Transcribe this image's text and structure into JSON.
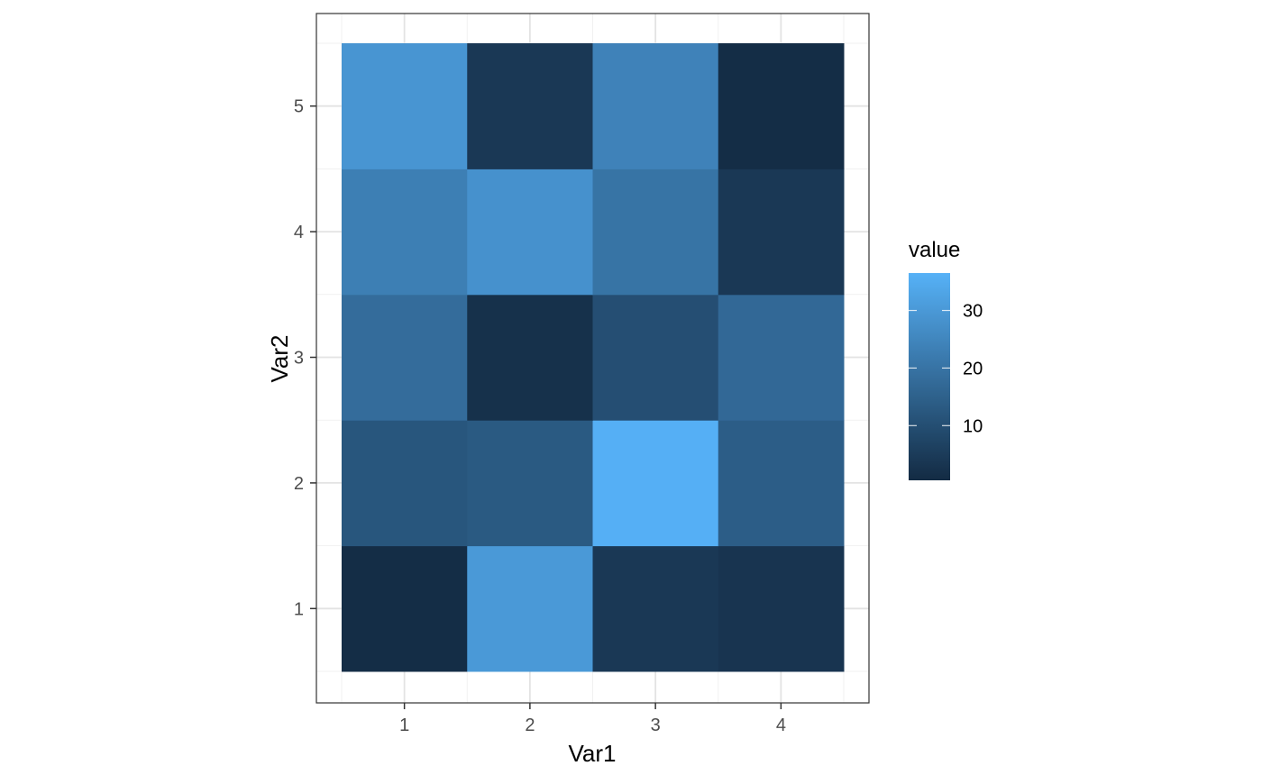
{
  "chart_data": {
    "type": "heatmap",
    "xlabel": "Var1",
    "ylabel": "Var2",
    "x_categories": [
      "1",
      "2",
      "3",
      "4"
    ],
    "y_categories": [
      "1",
      "2",
      "3",
      "4",
      "5"
    ],
    "values": [
      [
        1,
        30,
        4,
        3
      ],
      [
        12,
        13,
        36,
        14
      ],
      [
        18,
        2,
        10,
        17
      ],
      [
        23,
        28,
        20,
        4
      ],
      [
        29,
        4,
        24,
        1
      ]
    ],
    "legend": {
      "title": "value",
      "ticks": [
        10,
        20,
        30
      ],
      "tick_labels": [
        "10",
        "20",
        "30"
      ],
      "min": 0.5,
      "max": 36.5,
      "position": "right"
    },
    "color_low": "#132B43",
    "color_high": "#56B1F7",
    "grid": true,
    "theme": "bw"
  }
}
